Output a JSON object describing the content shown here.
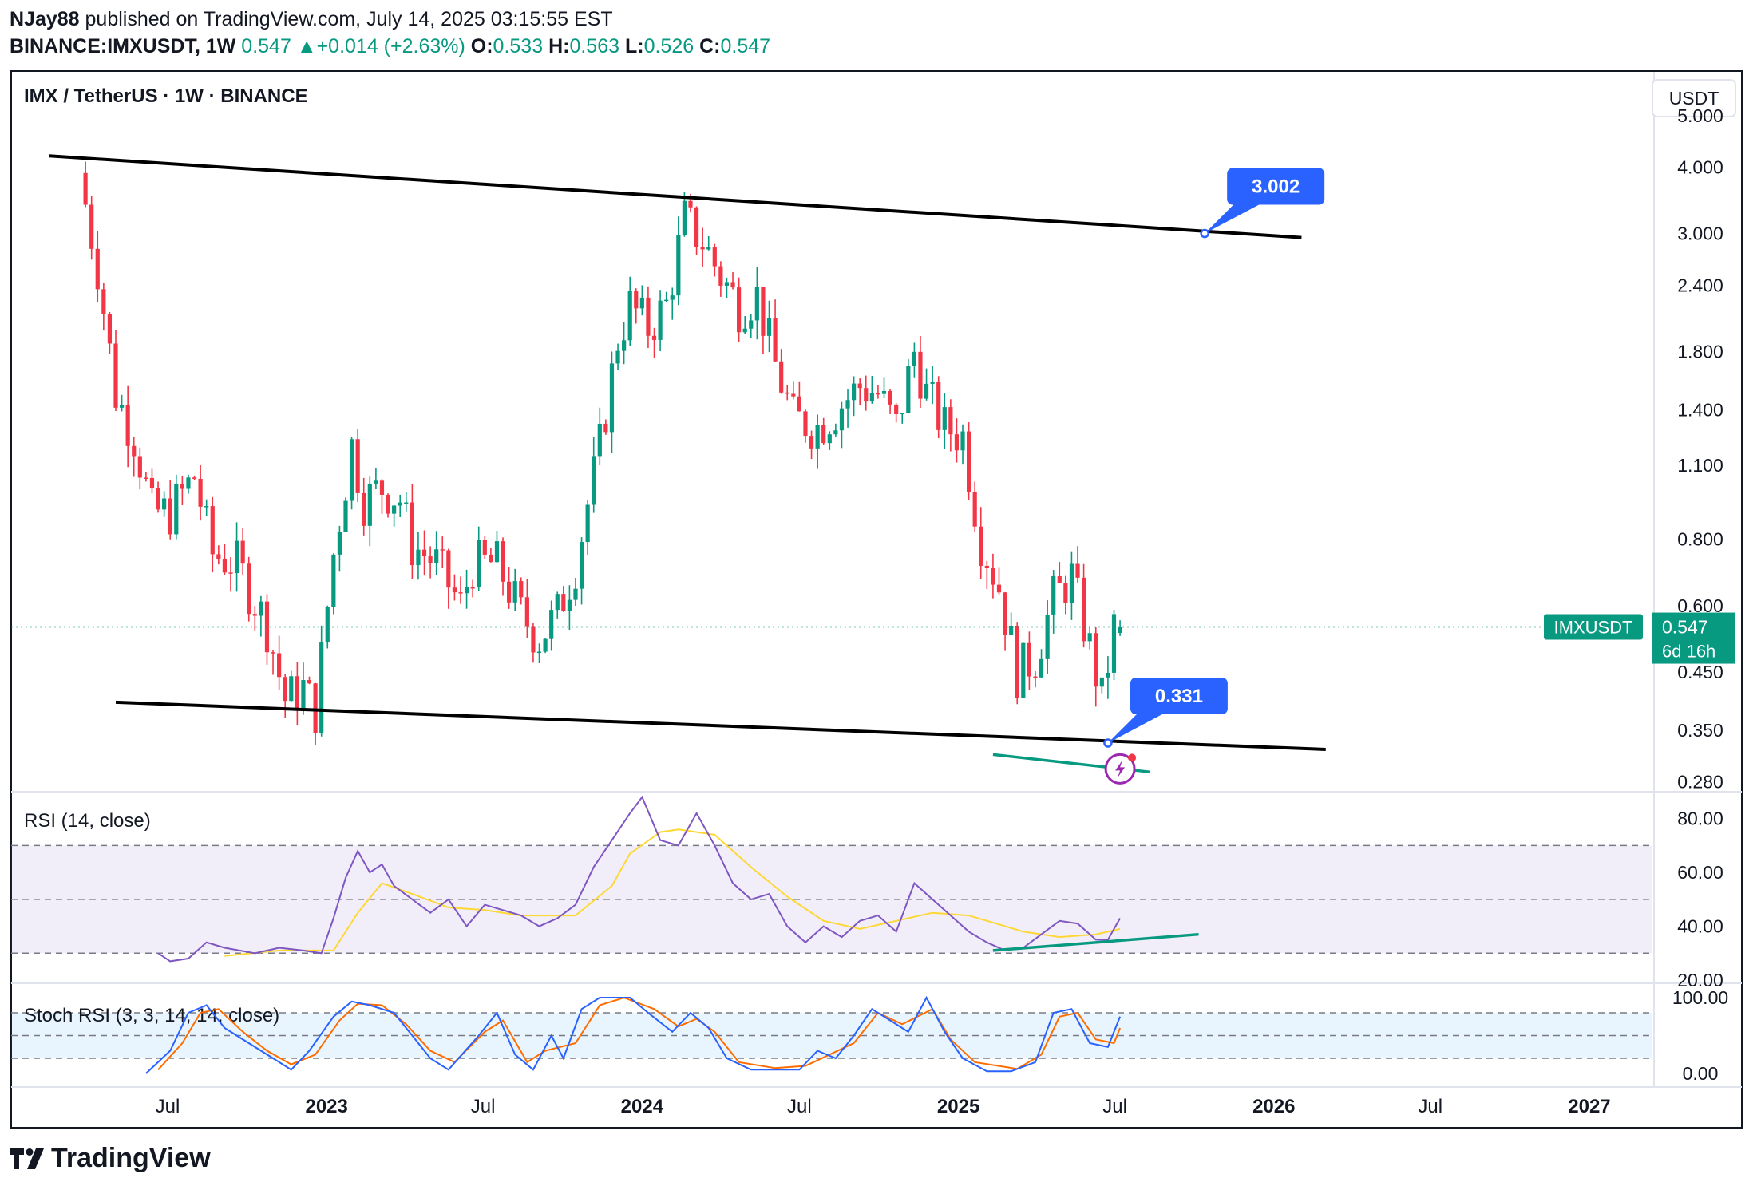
{
  "header": {
    "author": "NJay88",
    "published_text": "published on TradingView.com, July 14, 2025 03:15:55 EST",
    "symbol": "BINANCE:IMXUSDT, 1W",
    "price": "0.547",
    "change": "+0.014 (+2.63%)",
    "o_label": "O:",
    "o_value": "0.533",
    "h_label": "H:",
    "h_value": "0.563",
    "l_label": "L:",
    "l_value": "0.526",
    "c_label": "C:",
    "c_value": "0.547"
  },
  "footer": {
    "brand": "TradingView"
  },
  "colors": {
    "up": "#089981",
    "down": "#f23645",
    "rsi": "#7e57c2",
    "rsi_ma": "#fdd835",
    "stoch_k": "#2962ff",
    "stoch_d": "#ff6d00",
    "callout": "#2962ff",
    "trend": "#089981"
  },
  "chart_data": [
    {
      "type": "candlestick",
      "title": "IMX / TetherUS · 1W · BINANCE",
      "currency_label": "USDT",
      "y_scale": "log",
      "ylim": [
        0.27,
        6.0
      ],
      "y_ticks": [
        "5.000",
        "4.000",
        "3.000",
        "2.400",
        "1.800",
        "1.400",
        "1.100",
        "0.800",
        "0.600",
        "0.450",
        "0.350",
        "0.280"
      ],
      "x_ticks": [
        "Jul",
        "2023",
        "Jul",
        "2024",
        "Jul",
        "2025",
        "Jul",
        "2026",
        "Jul",
        "2027"
      ],
      "x_tick_dates": [
        "2022-07-01",
        "2023-01-01",
        "2023-07-01",
        "2024-01-01",
        "2024-07-01",
        "2025-01-01",
        "2025-07-01",
        "2026-01-01",
        "2026-07-01",
        "2027-01-01"
      ],
      "xlim": [
        "2022-01-01",
        "2027-03-15"
      ],
      "last_price": {
        "symbol_label": "IMXUSDT",
        "value": "0.547",
        "countdown": "6d 16h"
      },
      "close_series": [
        [
          "2022-03-28",
          3.9
        ],
        [
          "2022-04-18",
          2.6
        ],
        [
          "2022-05-09",
          1.5
        ],
        [
          "2022-05-30",
          1.25
        ],
        [
          "2022-06-20",
          0.9
        ],
        [
          "2022-07-11",
          0.9
        ],
        [
          "2022-08-08",
          1.05
        ],
        [
          "2022-08-29",
          0.75
        ],
        [
          "2022-09-26",
          0.72
        ],
        [
          "2022-10-31",
          0.55
        ],
        [
          "2022-11-21",
          0.4
        ],
        [
          "2022-12-12",
          0.42
        ],
        [
          "2022-12-26",
          0.38
        ],
        [
          "2023-01-16",
          0.75
        ],
        [
          "2023-02-06",
          1.2
        ],
        [
          "2023-02-20",
          0.95
        ],
        [
          "2023-03-13",
          1.0
        ],
        [
          "2023-04-03",
          0.95
        ],
        [
          "2023-04-17",
          0.78
        ],
        [
          "2023-05-15",
          0.72
        ],
        [
          "2023-06-12",
          0.6
        ],
        [
          "2023-06-26",
          0.72
        ],
        [
          "2023-07-24",
          0.72
        ],
        [
          "2023-08-21",
          0.58
        ],
        [
          "2023-09-11",
          0.52
        ],
        [
          "2023-10-02",
          0.58
        ],
        [
          "2023-10-23",
          0.72
        ],
        [
          "2023-11-20",
          1.2
        ],
        [
          "2023-12-11",
          1.9
        ],
        [
          "2023-12-25",
          2.2
        ],
        [
          "2024-01-15",
          2.0
        ],
        [
          "2024-02-05",
          2.2
        ],
        [
          "2024-02-26",
          3.2
        ],
        [
          "2024-03-18",
          2.9
        ],
        [
          "2024-04-08",
          2.5
        ],
        [
          "2024-04-29",
          2.2
        ],
        [
          "2024-05-20",
          2.3
        ],
        [
          "2024-06-10",
          1.7
        ],
        [
          "2024-07-01",
          1.35
        ],
        [
          "2024-07-29",
          1.3
        ],
        [
          "2024-08-19",
          1.4
        ],
        [
          "2024-09-16",
          1.55
        ],
        [
          "2024-10-07",
          1.5
        ],
        [
          "2024-10-28",
          1.3
        ],
        [
          "2024-11-18",
          1.8
        ],
        [
          "2024-12-02",
          1.5
        ],
        [
          "2024-12-23",
          1.3
        ],
        [
          "2025-01-13",
          1.25
        ],
        [
          "2025-02-03",
          0.8
        ],
        [
          "2025-02-24",
          0.65
        ],
        [
          "2025-03-17",
          0.45
        ],
        [
          "2025-04-07",
          0.48
        ],
        [
          "2025-04-28",
          0.62
        ],
        [
          "2025-05-19",
          0.68
        ],
        [
          "2025-06-09",
          0.5
        ],
        [
          "2025-06-23",
          0.4
        ],
        [
          "2025-07-07",
          0.547
        ]
      ],
      "channel_upper": {
        "start": [
          "2022-02-14",
          4.2
        ],
        "end": [
          "2026-02-02",
          2.95
        ]
      },
      "channel_lower": {
        "start": [
          "2022-05-02",
          0.395
        ],
        "end": [
          "2026-03-02",
          0.322
        ]
      },
      "callouts": [
        {
          "label": "3.002",
          "date": "2025-10-13",
          "price": 3.002
        },
        {
          "label": "0.331",
          "date": "2025-06-23",
          "price": 0.331
        }
      ],
      "price_support_line": {
        "start": [
          "2025-02-10",
          0.315
        ],
        "end": [
          "2025-08-11",
          0.292
        ]
      }
    },
    {
      "type": "line",
      "title": "RSI (14, close)",
      "ylim": [
        20,
        90
      ],
      "y_ticks": [
        "80.00",
        "60.00",
        "40.00",
        "20.00"
      ],
      "band": [
        30,
        70
      ],
      "rsi": [
        [
          "2022-06-20",
          30
        ],
        [
          "2022-07-04",
          27
        ],
        [
          "2022-07-25",
          28
        ],
        [
          "2022-08-15",
          34
        ],
        [
          "2022-09-05",
          32
        ],
        [
          "2022-10-10",
          30
        ],
        [
          "2022-11-07",
          32
        ],
        [
          "2022-12-05",
          31
        ],
        [
          "2022-12-26",
          30
        ],
        [
          "2023-01-09",
          43
        ],
        [
          "2023-01-23",
          58
        ],
        [
          "2023-02-06",
          68
        ],
        [
          "2023-02-20",
          60
        ],
        [
          "2023-03-06",
          63
        ],
        [
          "2023-03-20",
          55
        ],
        [
          "2023-04-10",
          50
        ],
        [
          "2023-05-01",
          45
        ],
        [
          "2023-05-22",
          50
        ],
        [
          "2023-06-12",
          40
        ],
        [
          "2023-07-03",
          48
        ],
        [
          "2023-07-24",
          46
        ],
        [
          "2023-08-14",
          44
        ],
        [
          "2023-09-04",
          40
        ],
        [
          "2023-09-25",
          43
        ],
        [
          "2023-10-16",
          48
        ],
        [
          "2023-11-06",
          62
        ],
        [
          "2023-11-27",
          72
        ],
        [
          "2023-12-18",
          82
        ],
        [
          "2024-01-01",
          88
        ],
        [
          "2024-01-22",
          72
        ],
        [
          "2024-02-12",
          70
        ],
        [
          "2024-03-04",
          82
        ],
        [
          "2024-03-25",
          70
        ],
        [
          "2024-04-15",
          56
        ],
        [
          "2024-05-06",
          50
        ],
        [
          "2024-05-27",
          52
        ],
        [
          "2024-06-17",
          40
        ],
        [
          "2024-07-08",
          34
        ],
        [
          "2024-07-29",
          40
        ],
        [
          "2024-08-19",
          36
        ],
        [
          "2024-09-09",
          42
        ],
        [
          "2024-09-30",
          44
        ],
        [
          "2024-10-21",
          38
        ],
        [
          "2024-11-11",
          56
        ],
        [
          "2024-12-02",
          50
        ],
        [
          "2024-12-23",
          44
        ],
        [
          "2025-01-13",
          38
        ],
        [
          "2025-02-03",
          34
        ],
        [
          "2025-02-24",
          31
        ],
        [
          "2025-03-17",
          32
        ],
        [
          "2025-04-07",
          37
        ],
        [
          "2025-04-28",
          42
        ],
        [
          "2025-05-19",
          41
        ],
        [
          "2025-06-09",
          35
        ],
        [
          "2025-06-23",
          35
        ],
        [
          "2025-07-07",
          43
        ]
      ],
      "rsi_ma": [
        [
          "2022-09-05",
          29
        ],
        [
          "2022-11-07",
          31
        ],
        [
          "2023-01-09",
          31
        ],
        [
          "2023-02-06",
          45
        ],
        [
          "2023-03-06",
          56
        ],
        [
          "2023-04-10",
          52
        ],
        [
          "2023-05-22",
          47
        ],
        [
          "2023-07-03",
          46
        ],
        [
          "2023-08-14",
          44
        ],
        [
          "2023-10-16",
          44
        ],
        [
          "2023-11-27",
          55
        ],
        [
          "2023-12-18",
          67
        ],
        [
          "2024-01-22",
          75
        ],
        [
          "2024-02-12",
          76
        ],
        [
          "2024-03-25",
          74
        ],
        [
          "2024-05-06",
          62
        ],
        [
          "2024-06-17",
          51
        ],
        [
          "2024-07-29",
          42
        ],
        [
          "2024-09-09",
          39
        ],
        [
          "2024-10-21",
          42
        ],
        [
          "2024-12-02",
          45
        ],
        [
          "2025-01-13",
          44
        ],
        [
          "2025-03-17",
          38
        ],
        [
          "2025-04-28",
          36
        ],
        [
          "2025-06-09",
          37
        ],
        [
          "2025-07-07",
          39
        ]
      ],
      "trendline": {
        "start": [
          "2025-02-10",
          31
        ],
        "end": [
          "2025-10-06",
          37
        ]
      }
    },
    {
      "type": "line",
      "title": "Stoch RSI (3, 3, 14, 14, close)",
      "ylim": [
        0,
        100
      ],
      "y_ticks": [
        "100.00",
        "0.00"
      ],
      "band": [
        20,
        80
      ],
      "k": [
        [
          "2022-06-06",
          0
        ],
        [
          "2022-07-04",
          30
        ],
        [
          "2022-07-25",
          80
        ],
        [
          "2022-08-15",
          90
        ],
        [
          "2022-09-05",
          60
        ],
        [
          "2022-10-03",
          40
        ],
        [
          "2022-10-31",
          20
        ],
        [
          "2022-11-21",
          5
        ],
        [
          "2022-12-12",
          30
        ],
        [
          "2023-01-09",
          75
        ],
        [
          "2023-01-30",
          95
        ],
        [
          "2023-02-20",
          90
        ],
        [
          "2023-03-20",
          80
        ],
        [
          "2023-04-10",
          50
        ],
        [
          "2023-05-01",
          20
        ],
        [
          "2023-05-22",
          5
        ],
        [
          "2023-06-26",
          50
        ],
        [
          "2023-07-17",
          80
        ],
        [
          "2023-08-07",
          25
        ],
        [
          "2023-08-28",
          5
        ],
        [
          "2023-09-18",
          50
        ],
        [
          "2023-10-02",
          20
        ],
        [
          "2023-10-23",
          85
        ],
        [
          "2023-11-13",
          100
        ],
        [
          "2023-12-18",
          100
        ],
        [
          "2024-01-08",
          80
        ],
        [
          "2024-02-05",
          55
        ],
        [
          "2024-02-26",
          80
        ],
        [
          "2024-03-18",
          60
        ],
        [
          "2024-04-08",
          20
        ],
        [
          "2024-05-06",
          5
        ],
        [
          "2024-06-03",
          5
        ],
        [
          "2024-07-01",
          5
        ],
        [
          "2024-07-22",
          30
        ],
        [
          "2024-08-12",
          20
        ],
        [
          "2024-09-02",
          50
        ],
        [
          "2024-09-23",
          85
        ],
        [
          "2024-10-14",
          70
        ],
        [
          "2024-11-04",
          55
        ],
        [
          "2024-11-25",
          100
        ],
        [
          "2024-12-16",
          55
        ],
        [
          "2025-01-06",
          20
        ],
        [
          "2025-02-03",
          3
        ],
        [
          "2025-03-03",
          3
        ],
        [
          "2025-03-31",
          15
        ],
        [
          "2025-04-21",
          80
        ],
        [
          "2025-05-12",
          85
        ],
        [
          "2025-06-02",
          40
        ],
        [
          "2025-06-23",
          35
        ],
        [
          "2025-07-07",
          75
        ]
      ],
      "d": [
        [
          "2022-06-20",
          5
        ],
        [
          "2022-07-18",
          40
        ],
        [
          "2022-08-08",
          80
        ],
        [
          "2022-08-29",
          85
        ],
        [
          "2022-09-26",
          55
        ],
        [
          "2022-10-24",
          30
        ],
        [
          "2022-11-21",
          12
        ],
        [
          "2022-12-19",
          25
        ],
        [
          "2023-01-16",
          70
        ],
        [
          "2023-02-06",
          92
        ],
        [
          "2023-03-06",
          90
        ],
        [
          "2023-04-03",
          65
        ],
        [
          "2023-05-01",
          30
        ],
        [
          "2023-05-29",
          15
        ],
        [
          "2023-07-03",
          55
        ],
        [
          "2023-07-24",
          70
        ],
        [
          "2023-08-21",
          15
        ],
        [
          "2023-09-11",
          30
        ],
        [
          "2023-10-16",
          40
        ],
        [
          "2023-11-13",
          90
        ],
        [
          "2023-12-11",
          100
        ],
        [
          "2024-01-15",
          85
        ],
        [
          "2024-02-12",
          62
        ],
        [
          "2024-03-04",
          72
        ],
        [
          "2024-03-25",
          55
        ],
        [
          "2024-04-22",
          15
        ],
        [
          "2024-06-03",
          7
        ],
        [
          "2024-07-08",
          10
        ],
        [
          "2024-08-05",
          25
        ],
        [
          "2024-09-02",
          40
        ],
        [
          "2024-09-30",
          80
        ],
        [
          "2024-10-28",
          65
        ],
        [
          "2024-12-02",
          85
        ],
        [
          "2024-12-23",
          45
        ],
        [
          "2025-01-20",
          15
        ],
        [
          "2025-03-10",
          6
        ],
        [
          "2025-04-07",
          25
        ],
        [
          "2025-04-28",
          75
        ],
        [
          "2025-05-19",
          80
        ],
        [
          "2025-06-09",
          45
        ],
        [
          "2025-06-30",
          40
        ],
        [
          "2025-07-07",
          60
        ]
      ]
    }
  ]
}
